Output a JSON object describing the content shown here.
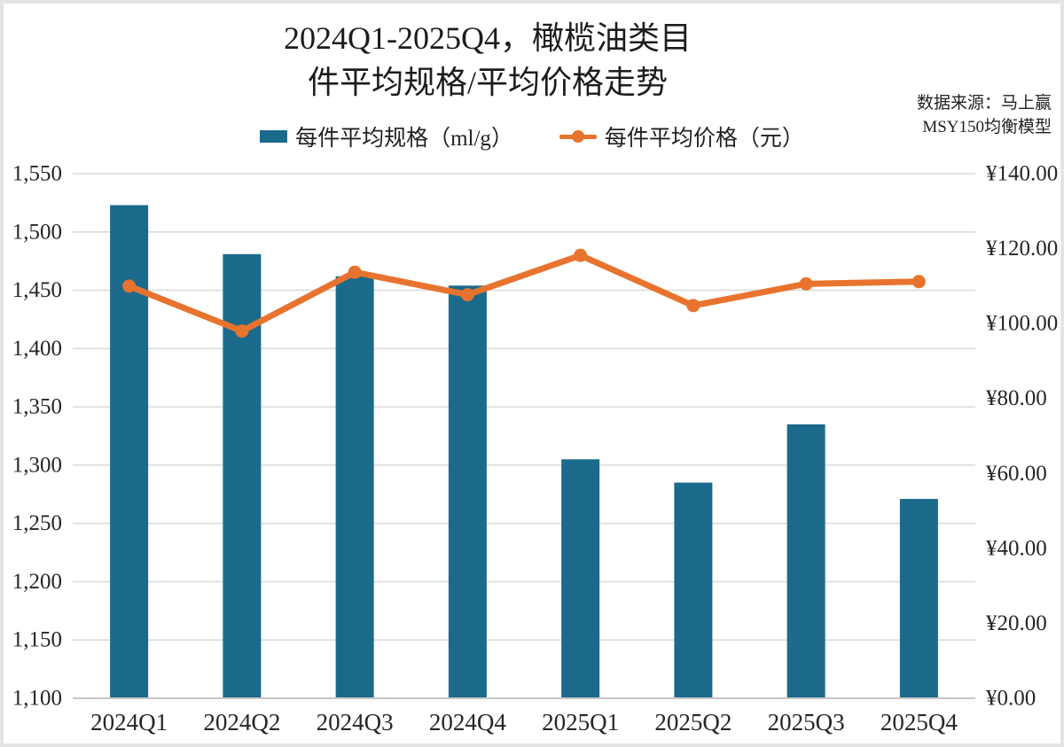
{
  "title": {
    "line1": "2024Q1-2025Q4，橄榄油类目",
    "line2": "件平均规格/平均价格走势",
    "full": "2024Q1-2025Q4，橄榄油类目件平均规格/平均价格走势"
  },
  "source": {
    "line1": "数据来源：马上赢",
    "line2": "MSY150均衡模型"
  },
  "legend": {
    "bar_label": "每件平均规格（ml/g）",
    "line_label": "每件平均价格（元）"
  },
  "colors": {
    "bar": "#1b6a8c",
    "line": "#e8732e",
    "gridline": "#d9d9d9",
    "axis_line": "#c6c6c6",
    "text": "#262626"
  },
  "chart_data": {
    "type": "bar",
    "subtype": "combo-bar-line-dual-axis",
    "title": "2024Q1-2025Q4，橄榄油类目件平均规格/平均价格走势",
    "categories": [
      "2024Q1",
      "2024Q2",
      "2024Q3",
      "2024Q4",
      "2025Q1",
      "2025Q2",
      "2025Q3",
      "2025Q4"
    ],
    "series": [
      {
        "name": "每件平均规格（ml/g）",
        "type": "bar",
        "axis": "left",
        "color": "#1b6a8c",
        "values": [
          1523,
          1481,
          1462,
          1454,
          1305,
          1285,
          1335,
          1271
        ]
      },
      {
        "name": "每件平均价格（元）",
        "type": "line",
        "axis": "right",
        "color": "#e8732e",
        "values": [
          110.0,
          98.0,
          113.7,
          107.7,
          118.2,
          104.8,
          110.6,
          111.2
        ]
      }
    ],
    "left_axis": {
      "min": 1100,
      "max": 1550,
      "step": 50,
      "tick_labels": [
        "1,100",
        "1,150",
        "1,200",
        "1,250",
        "1,300",
        "1,350",
        "1,400",
        "1,450",
        "1,500",
        "1,550"
      ]
    },
    "right_axis": {
      "min": 0,
      "max": 140,
      "step": 20,
      "tick_labels": [
        "¥0.00",
        "¥20.00",
        "¥40.00",
        "¥60.00",
        "¥80.00",
        "¥100.00",
        "¥120.00",
        "¥140.00"
      ]
    },
    "grid": "horizontal",
    "legend_position": "top"
  }
}
